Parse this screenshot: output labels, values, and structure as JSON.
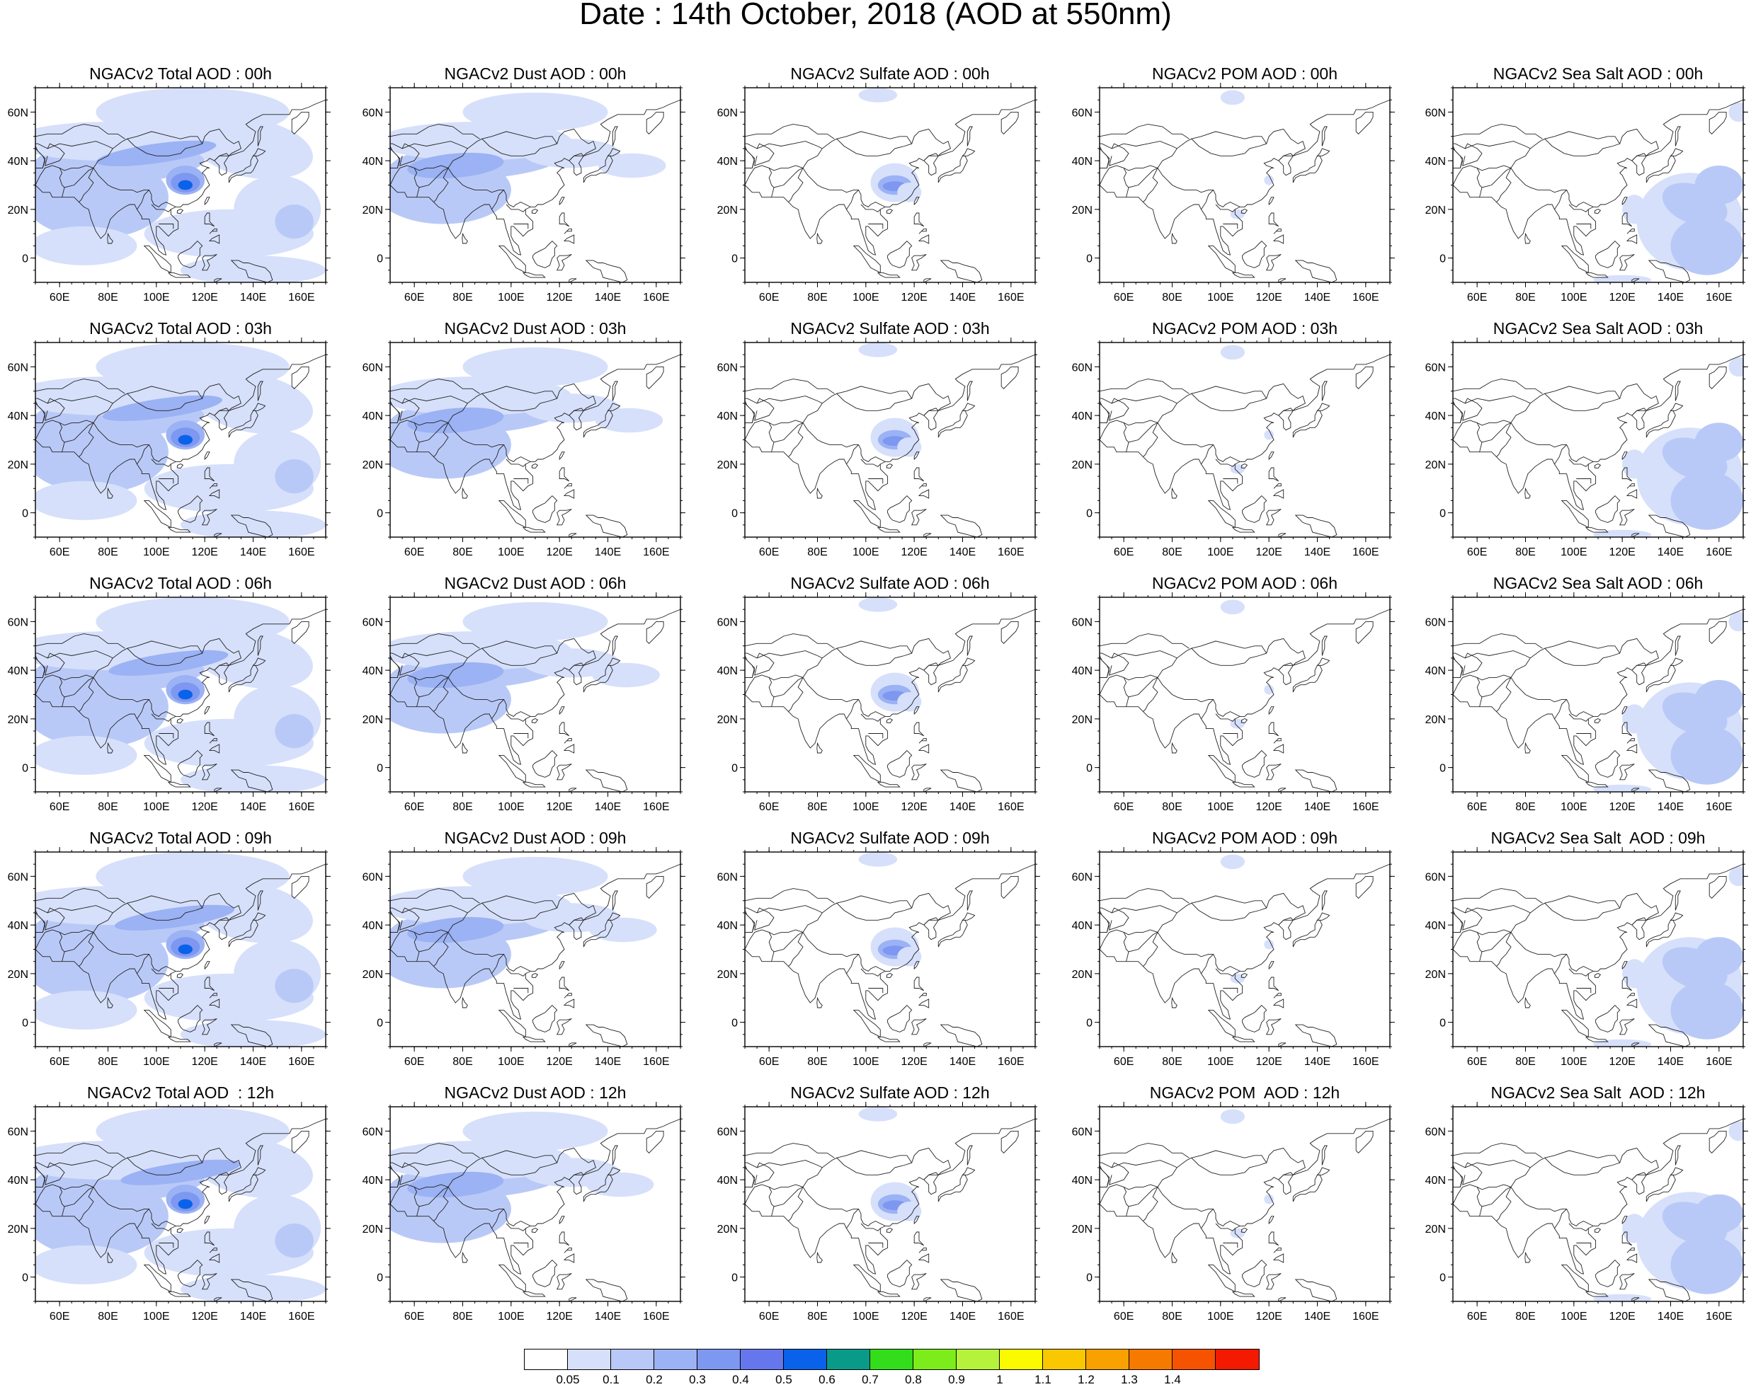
{
  "title": "Date : 14th October, 2018 (AOD at 550nm)",
  "panels": [
    [
      {
        "title": "NGACv2 Total AOD : 00h",
        "variable": "total",
        "hour": 0
      },
      {
        "title": "NGACv2 Dust AOD : 00h",
        "variable": "dust",
        "hour": 0
      },
      {
        "title": "NGACv2 Sulfate AOD : 00h",
        "variable": "sulfate",
        "hour": 0
      },
      {
        "title": "NGACv2 POM AOD : 00h",
        "variable": "pom",
        "hour": 0
      },
      {
        "title": "NGACv2 Sea Salt AOD : 00h",
        "variable": "seasalt",
        "hour": 0
      }
    ],
    [
      {
        "title": "NGACv2 Total AOD : 03h",
        "variable": "total",
        "hour": 3
      },
      {
        "title": "NGACv2 Dust AOD : 03h",
        "variable": "dust",
        "hour": 3
      },
      {
        "title": "NGACv2 Sulfate AOD : 03h",
        "variable": "sulfate",
        "hour": 3
      },
      {
        "title": "NGACv2 POM AOD : 03h",
        "variable": "pom",
        "hour": 3
      },
      {
        "title": "NGACv2 Sea Salt AOD : 03h",
        "variable": "seasalt",
        "hour": 3
      }
    ],
    [
      {
        "title": "NGACv2 Total AOD : 06h",
        "variable": "total",
        "hour": 6
      },
      {
        "title": "NGACv2 Dust AOD : 06h",
        "variable": "dust",
        "hour": 6
      },
      {
        "title": "NGACv2 Sulfate AOD : 06h",
        "variable": "sulfate",
        "hour": 6
      },
      {
        "title": "NGACv2 POM AOD : 06h",
        "variable": "pom",
        "hour": 6
      },
      {
        "title": "NGACv2 Sea Salt AOD : 06h",
        "variable": "seasalt",
        "hour": 6
      }
    ],
    [
      {
        "title": "NGACv2 Total AOD : 09h",
        "variable": "total",
        "hour": 9
      },
      {
        "title": "NGACv2 Dust AOD : 09h",
        "variable": "dust",
        "hour": 9
      },
      {
        "title": "NGACv2 Sulfate AOD : 09h",
        "variable": "sulfate",
        "hour": 9
      },
      {
        "title": "NGACv2 POM AOD : 09h",
        "variable": "pom",
        "hour": 9
      },
      {
        "title": "NGACv2 Sea Salt  AOD : 09h",
        "variable": "seasalt",
        "hour": 9
      }
    ],
    [
      {
        "title": "NGACv2 Total AOD  : 12h",
        "variable": "total",
        "hour": 12
      },
      {
        "title": "NGACv2 Dust AOD : 12h",
        "variable": "dust",
        "hour": 12
      },
      {
        "title": "NGACv2 Sulfate AOD : 12h",
        "variable": "sulfate",
        "hour": 12
      },
      {
        "title": "NGACv2 POM  AOD : 12h",
        "variable": "pom",
        "hour": 12
      },
      {
        "title": "NGACv2 Sea Salt  AOD : 12h",
        "variable": "seasalt",
        "hour": 12
      }
    ]
  ],
  "map": {
    "lon_range": [
      50,
      170
    ],
    "lat_range": [
      -10,
      70
    ],
    "lon_ticks": [
      60,
      80,
      100,
      120,
      140,
      160
    ],
    "lon_tick_labels": [
      "60E",
      "80E",
      "100E",
      "120E",
      "140E",
      "160E"
    ],
    "lat_ticks": [
      0,
      20,
      40,
      60
    ],
    "lat_tick_labels": [
      "0",
      "20N",
      "40N",
      "60N"
    ]
  },
  "colorbar": {
    "colors": [
      "#ffffff",
      "#d6e0fb",
      "#b9c9f7",
      "#9bb2f4",
      "#7e97f0",
      "#6677ee",
      "#0a62ea",
      "#0a9a8a",
      "#33dd1c",
      "#7ced1a",
      "#b5f23c",
      "#fbfb00",
      "#f9c800",
      "#f9a100",
      "#f77a00",
      "#f55300",
      "#f31a00"
    ],
    "labels": [
      "0.05",
      "0.1",
      "0.2",
      "0.3",
      "0.4",
      "0.5",
      "0.6",
      "0.7",
      "0.8",
      "0.9",
      "1",
      "1.1",
      "1.2",
      "1.3",
      "1.4"
    ]
  }
}
